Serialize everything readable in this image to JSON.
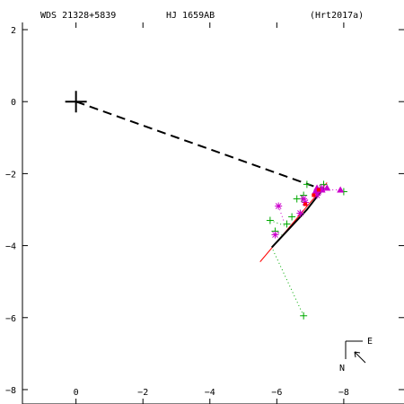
{
  "chart_data": {
    "type": "scatter",
    "header": {
      "wds": "WDS 21328+5839",
      "pair": "HJ 1659AB",
      "orbit": "(Hrt2017a)"
    },
    "xlabel": "",
    "ylabel": "",
    "xlim": [
      1.6,
      -9.8
    ],
    "ylim": [
      -8.4,
      2.2
    ],
    "x_ticks": [
      -8,
      -6,
      -4,
      -2,
      0
    ],
    "y_ticks": [
      -8,
      -6,
      -4,
      -2,
      0,
      2
    ],
    "x_tick_labels": [
      "−8",
      "−6",
      "−4",
      "−2",
      "0"
    ],
    "y_tick_labels": [
      "−8",
      "−6",
      "−4",
      "−2",
      "0",
      "2"
    ],
    "grid": false,
    "primary": {
      "x": 0,
      "y": 0
    },
    "orbit_line": {
      "color": "#000000",
      "points": [
        [
          -7.4,
          -2.4
        ],
        [
          -6.9,
          -3.0
        ],
        [
          -6.4,
          -3.5
        ],
        [
          -5.85,
          -4.05
        ]
      ]
    },
    "red_segment": {
      "color": "#ff0000",
      "points": [
        [
          -7.5,
          -2.25
        ],
        [
          -5.5,
          -4.45
        ]
      ]
    },
    "periastron_line": {
      "style": "dashed",
      "color": "#000000",
      "points": [
        [
          0,
          0
        ],
        [
          -7.1,
          -2.35
        ]
      ]
    },
    "series": [
      {
        "marker": "plus",
        "color": "#00aa00",
        "points": [
          [
            -8.0,
            -2.5
          ],
          [
            -7.4,
            -2.3
          ],
          [
            -7.3,
            -2.4
          ],
          [
            -7.2,
            -2.5
          ],
          [
            -6.9,
            -2.3
          ],
          [
            -6.8,
            -2.6
          ],
          [
            -6.75,
            -2.7
          ],
          [
            -6.6,
            -2.7
          ],
          [
            -6.7,
            -3.1
          ],
          [
            -6.45,
            -3.2
          ],
          [
            -6.3,
            -3.4
          ],
          [
            -5.8,
            -3.3
          ],
          [
            -5.95,
            -3.6
          ],
          [
            -6.8,
            -5.95
          ]
        ]
      },
      {
        "marker": "asterisk",
        "color": "#cc00cc",
        "points": [
          [
            -7.35,
            -2.4
          ],
          [
            -7.25,
            -2.5
          ],
          [
            -7.2,
            -2.6
          ],
          [
            -6.8,
            -2.7
          ],
          [
            -6.85,
            -2.8
          ],
          [
            -6.05,
            -2.9
          ],
          [
            -6.7,
            -3.1
          ],
          [
            -5.95,
            -3.7
          ]
        ]
      },
      {
        "marker": "triangle",
        "color": "#cc00cc",
        "points": [
          [
            -7.9,
            -2.45
          ],
          [
            -7.5,
            -2.4
          ],
          [
            -7.35,
            -2.45
          ],
          [
            -7.2,
            -2.4
          ],
          [
            -7.15,
            -2.5
          ]
        ]
      },
      {
        "marker": "small-square",
        "color": "#ff0000",
        "points": [
          [
            -7.25,
            -2.45
          ],
          [
            -7.1,
            -2.6
          ],
          [
            -6.85,
            -2.85
          ]
        ]
      }
    ],
    "residuals": [
      {
        "color": "#00aa00",
        "from": [
          -6.8,
          -5.95
        ],
        "to": [
          -5.85,
          -4.05
        ]
      },
      {
        "color": "#00aa00",
        "from": [
          -5.8,
          -3.3
        ],
        "to": [
          -6.25,
          -3.45
        ]
      },
      {
        "color": "#00aa00",
        "from": [
          -5.95,
          -3.6
        ],
        "to": [
          -6.15,
          -3.7
        ]
      },
      {
        "color": "#cc00cc",
        "from": [
          -7.9,
          -2.45
        ],
        "to": [
          -7.4,
          -2.45
        ]
      },
      {
        "color": "#cc00cc",
        "from": [
          -6.05,
          -2.9
        ],
        "to": [
          -6.2,
          -3.3
        ]
      },
      {
        "color": "#cc00cc",
        "from": [
          -5.95,
          -3.7
        ],
        "to": [
          -6.1,
          -3.6
        ]
      }
    ]
  },
  "compass": {
    "east_label": "E",
    "north_label": "N"
  }
}
